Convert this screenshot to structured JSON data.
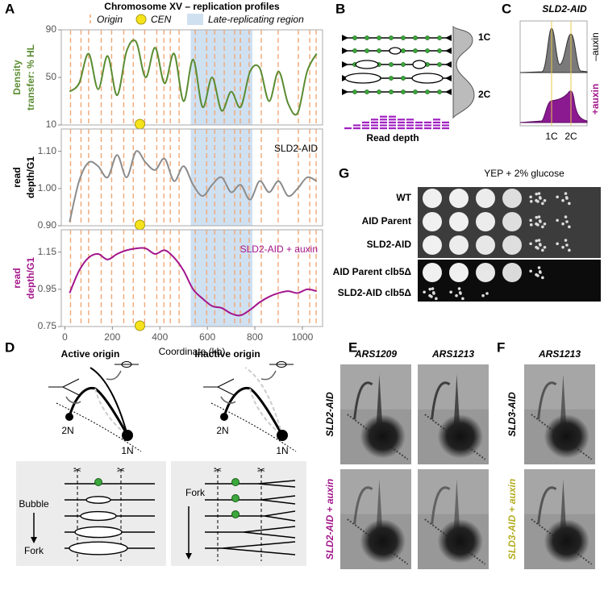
{
  "chart_data": [
    {
      "type": "line",
      "title": "Chromosome XV – replication profiles",
      "legend": {
        "origin": "Origin",
        "cen": "CEN",
        "late": "Late-replicating region"
      },
      "origins": [
        24,
        68,
        100,
        153,
        197,
        248,
        288,
        336,
        387,
        417,
        444,
        481,
        549,
        597,
        631,
        671,
        715,
        739,
        776,
        827,
        898,
        983,
        1031,
        1058
      ],
      "cen": 316,
      "late_region": [
        530,
        790
      ],
      "ylabel": [
        "Density",
        "transfer: % HL"
      ],
      "ylabel_color": "#5b8c32",
      "xlim": [
        -15,
        1085
      ],
      "ylim": [
        10,
        90
      ],
      "yticks": [
        10,
        50,
        90
      ],
      "x": [
        20,
        60,
        100,
        140,
        180,
        220,
        260,
        300,
        340,
        380,
        420,
        460,
        500,
        540,
        580,
        620,
        660,
        700,
        740,
        780,
        820,
        860,
        900,
        940,
        980,
        1020,
        1060
      ],
      "series": [
        {
          "color": "#5b8c32",
          "values": [
            38,
            45,
            70,
            40,
            68,
            35,
            72,
            80,
            50,
            75,
            45,
            70,
            30,
            65,
            25,
            50,
            22,
            38,
            25,
            55,
            58,
            30,
            55,
            28,
            20,
            55,
            70
          ]
        }
      ]
    },
    {
      "type": "line",
      "ylabel": [
        "read",
        "depth/G1"
      ],
      "ylabel_color": "#000000",
      "annotation": "SLD2-AID",
      "xlim": [
        -15,
        1085
      ],
      "ylim": [
        0.9,
        1.16
      ],
      "yticks": [
        {
          "value": 0.9,
          "label": "0.90"
        },
        {
          "value": 1.0,
          "label": "1.00"
        },
        {
          "value": 1.1,
          "label": "1.10"
        }
      ],
      "x": [
        20,
        60,
        100,
        140,
        180,
        220,
        260,
        300,
        340,
        380,
        420,
        460,
        500,
        540,
        580,
        620,
        660,
        700,
        740,
        780,
        820,
        860,
        900,
        940,
        980,
        1020,
        1060
      ],
      "series": [
        {
          "color": "#8c8c8c",
          "values": [
            0.91,
            1.02,
            1.07,
            1.06,
            1.03,
            1.09,
            1.03,
            1.1,
            1.07,
            1.05,
            1.08,
            1.02,
            1.06,
            1.01,
            0.98,
            1.01,
            1.03,
            0.99,
            1.01,
            0.97,
            1.02,
            0.99,
            1.02,
            0.98,
            1.0,
            1.03,
            1.02
          ]
        }
      ]
    },
    {
      "type": "line",
      "ylabel": [
        "read",
        "depth/G1"
      ],
      "ylabel_color": "#a3168c",
      "annotation": "SLD2-AID + auxin",
      "xlabel": "Coordinate (kb)",
      "xlim": [
        -15,
        1085
      ],
      "ylim": [
        0.75,
        1.27
      ],
      "yticks": [
        0.75,
        0.95,
        1.15
      ],
      "xticks": [
        0,
        200,
        400,
        600,
        800,
        1000
      ],
      "x": [
        20,
        60,
        100,
        140,
        180,
        220,
        260,
        300,
        340,
        380,
        420,
        460,
        500,
        540,
        580,
        620,
        660,
        700,
        740,
        780,
        820,
        860,
        900,
        940,
        980,
        1020,
        1060
      ],
      "series": [
        {
          "color": "#a3168c",
          "values": [
            0.93,
            1.05,
            1.12,
            1.14,
            1.11,
            1.14,
            1.16,
            1.17,
            1.17,
            1.14,
            1.16,
            1.12,
            1.05,
            0.95,
            0.9,
            0.86,
            0.85,
            0.82,
            0.81,
            0.84,
            0.88,
            0.91,
            0.93,
            0.94,
            0.93,
            0.95,
            0.94
          ]
        }
      ]
    }
  ],
  "panels": {
    "labels": [
      "A",
      "B",
      "C",
      "D",
      "E",
      "F",
      "G"
    ],
    "B": {
      "labels": [
        "1C",
        "2C"
      ],
      "xlabel": "Read depth"
    },
    "C": {
      "title": "SLD2-AID",
      "rows": [
        "–auxin",
        "+auxin"
      ],
      "ticks": [
        "1C",
        "2C"
      ]
    },
    "D": {
      "columns": [
        {
          "title": "Active origin",
          "n2": "2N",
          "n1": "1N",
          "steps": [
            "Bubble",
            "Fork"
          ]
        },
        {
          "title": "Inactive origin",
          "n2": "2N",
          "n1": "1N",
          "steps": [
            "Fork"
          ]
        }
      ]
    },
    "E": {
      "columns": [
        "ARS1209",
        "ARS1213"
      ],
      "rows": [
        "SLD2-AID",
        "SLD2-AID + auxin"
      ]
    },
    "F": {
      "columns": [
        "ARS1213"
      ],
      "rows": [
        "SLD3-AID",
        "SLD3-AID + auxin"
      ]
    },
    "G": {
      "title": "YEP + 2% glucose",
      "rows": [
        "WT",
        "AID Parent",
        "SLD2-AID",
        "AID Parent clb5Δ",
        "SLD2-AID clb5Δ"
      ]
    }
  }
}
